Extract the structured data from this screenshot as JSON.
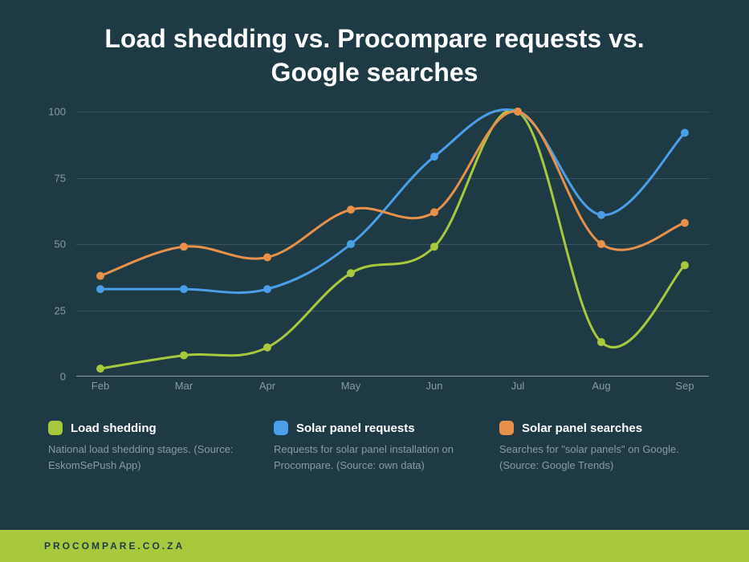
{
  "title": "Load shedding vs. Procompare requests vs. Google searches",
  "chart": {
    "type": "line",
    "background_color": "#1e3a44",
    "grid_color": "#3a5560",
    "axis_text_color": "#8a9ba5",
    "ylim": [
      0,
      100
    ],
    "ytick_step": 25,
    "yticks": [
      0,
      25,
      50,
      75,
      100
    ],
    "categories": [
      "Feb",
      "Mar",
      "Apr",
      "May",
      "Jun",
      "Jul",
      "Aug",
      "Sep"
    ],
    "line_width": 3,
    "marker_radius": 5,
    "aspect_ratio": "wide",
    "series": [
      {
        "name": "Load shedding",
        "color": "#a8c93e",
        "values": [
          3,
          8,
          11,
          39,
          49,
          100,
          13,
          42
        ]
      },
      {
        "name": "Solar panel requests",
        "color": "#4a9fe8",
        "values": [
          33,
          33,
          33,
          50,
          83,
          100,
          61,
          92
        ]
      },
      {
        "name": "Solar panel searches",
        "color": "#e8914a",
        "values": [
          38,
          49,
          45,
          63,
          62,
          100,
          50,
          58
        ]
      }
    ]
  },
  "legend": [
    {
      "title": "Load shedding",
      "desc": "National load shedding stages. (Source: EskomSePush App)",
      "color": "#a8c93e"
    },
    {
      "title": "Solar panel requests",
      "desc": "Requests for solar panel installation on Procompare. (Source: own data)",
      "color": "#4a9fe8"
    },
    {
      "title": "Solar panel searches",
      "desc": "Searches for \"solar panels\" on Google. (Source: Google Trends)",
      "color": "#e8914a"
    }
  ],
  "footer": "PROCOMPARE.CO.ZA",
  "footer_bg": "#a8c93e"
}
